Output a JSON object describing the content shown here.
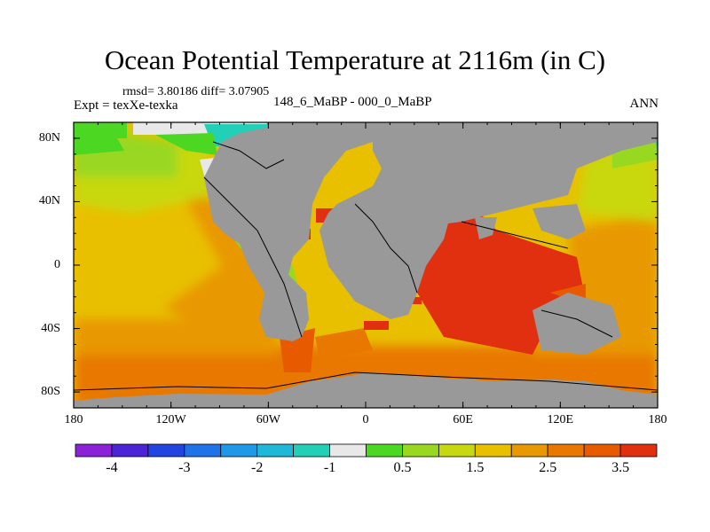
{
  "title": "Ocean Potential Temperature at 2116m (in C)",
  "stats": "rmsd= 3.80186 diff= 3.07905",
  "experiment": "Expt = texXe-texka",
  "difference_label": "148_6_MaBP - 000_0_MaBP",
  "season": "ANN",
  "map": {
    "projection": "cylindrical equidistant",
    "lat_range": [
      -90,
      90
    ],
    "lon_range": [
      -180,
      180
    ],
    "lat_ticks": [
      "80N",
      "40N",
      "0",
      "40S",
      "80S"
    ],
    "lat_values": [
      80,
      40,
      0,
      -40,
      -80
    ],
    "lon_ticks": [
      "180",
      "120W",
      "60W",
      "0",
      "60E",
      "120E",
      "180"
    ],
    "lon_values": [
      -180,
      -120,
      -60,
      0,
      60,
      120,
      180
    ],
    "land_color": "#999999"
  },
  "colorbar": {
    "colors": [
      "#8b22d8",
      "#4a24d6",
      "#2244e0",
      "#1f73e8",
      "#1f98e8",
      "#1fb8d8",
      "#22d0b8",
      "#e8e8e8",
      "#4cd822",
      "#98d820",
      "#c8d810",
      "#e8c000",
      "#e89800",
      "#e87800",
      "#e85a00",
      "#e03010"
    ],
    "labels": [
      "-4",
      "-3",
      "-2",
      "-1",
      "0.5",
      "1.5",
      "2.5",
      "3.5"
    ],
    "label_boundary_index": [
      1,
      3,
      5,
      7,
      9,
      11,
      13,
      15
    ]
  }
}
